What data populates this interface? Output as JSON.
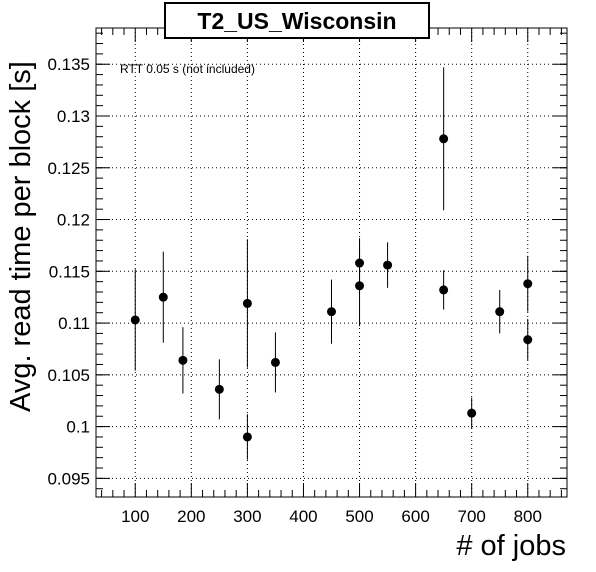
{
  "chart_data": {
    "type": "scatter",
    "title": "T2_US_Wisconsin",
    "xlabel": "# of jobs",
    "ylabel": "Avg. read time per block [s]",
    "annotation": "RTT 0.05 s (not included)",
    "xlim": [
      30,
      870
    ],
    "ylim": [
      0.0932,
      0.1385
    ],
    "x_ticks": [
      100,
      200,
      300,
      400,
      500,
      600,
      700,
      800
    ],
    "y_ticks": [
      0.095,
      0.1,
      0.105,
      0.11,
      0.115,
      0.12,
      0.125,
      0.13,
      0.135
    ],
    "x_tick_labels": [
      "100",
      "200",
      "300",
      "400",
      "500",
      "600",
      "700",
      "800"
    ],
    "y_tick_labels": [
      "0.095",
      "0.1",
      "0.105",
      "0.11",
      "0.115",
      "0.12",
      "0.125",
      "0.13",
      "0.135"
    ],
    "grid": true,
    "points": [
      {
        "x": 100,
        "y": 0.1103,
        "err": 0.0049
      },
      {
        "x": 150,
        "y": 0.1125,
        "err": 0.0044
      },
      {
        "x": 185,
        "y": 0.1064,
        "err": 0.0032
      },
      {
        "x": 250,
        "y": 0.1036,
        "err": 0.0029
      },
      {
        "x": 300,
        "y": 0.099,
        "err": 0.0022
      },
      {
        "x": 300,
        "y": 0.1119,
        "err": 0.0062
      },
      {
        "x": 350,
        "y": 0.1062,
        "err": 0.0029
      },
      {
        "x": 450,
        "y": 0.1111,
        "err": 0.0031
      },
      {
        "x": 500,
        "y": 0.1136,
        "err": 0.0039
      },
      {
        "x": 500,
        "y": 0.1158,
        "err": 0.0024
      },
      {
        "x": 550,
        "y": 0.1156,
        "err": 0.0022
      },
      {
        "x": 650,
        "y": 0.1278,
        "err": 0.0069
      },
      {
        "x": 650,
        "y": 0.1132,
        "err": 0.0019
      },
      {
        "x": 700,
        "y": 0.1013,
        "err": 0.0015
      },
      {
        "x": 750,
        "y": 0.1111,
        "err": 0.0021
      },
      {
        "x": 800,
        "y": 0.1138,
        "err": 0.0027
      },
      {
        "x": 800,
        "y": 0.1084,
        "err": 0.002
      }
    ],
    "marker_color": "#000000"
  }
}
